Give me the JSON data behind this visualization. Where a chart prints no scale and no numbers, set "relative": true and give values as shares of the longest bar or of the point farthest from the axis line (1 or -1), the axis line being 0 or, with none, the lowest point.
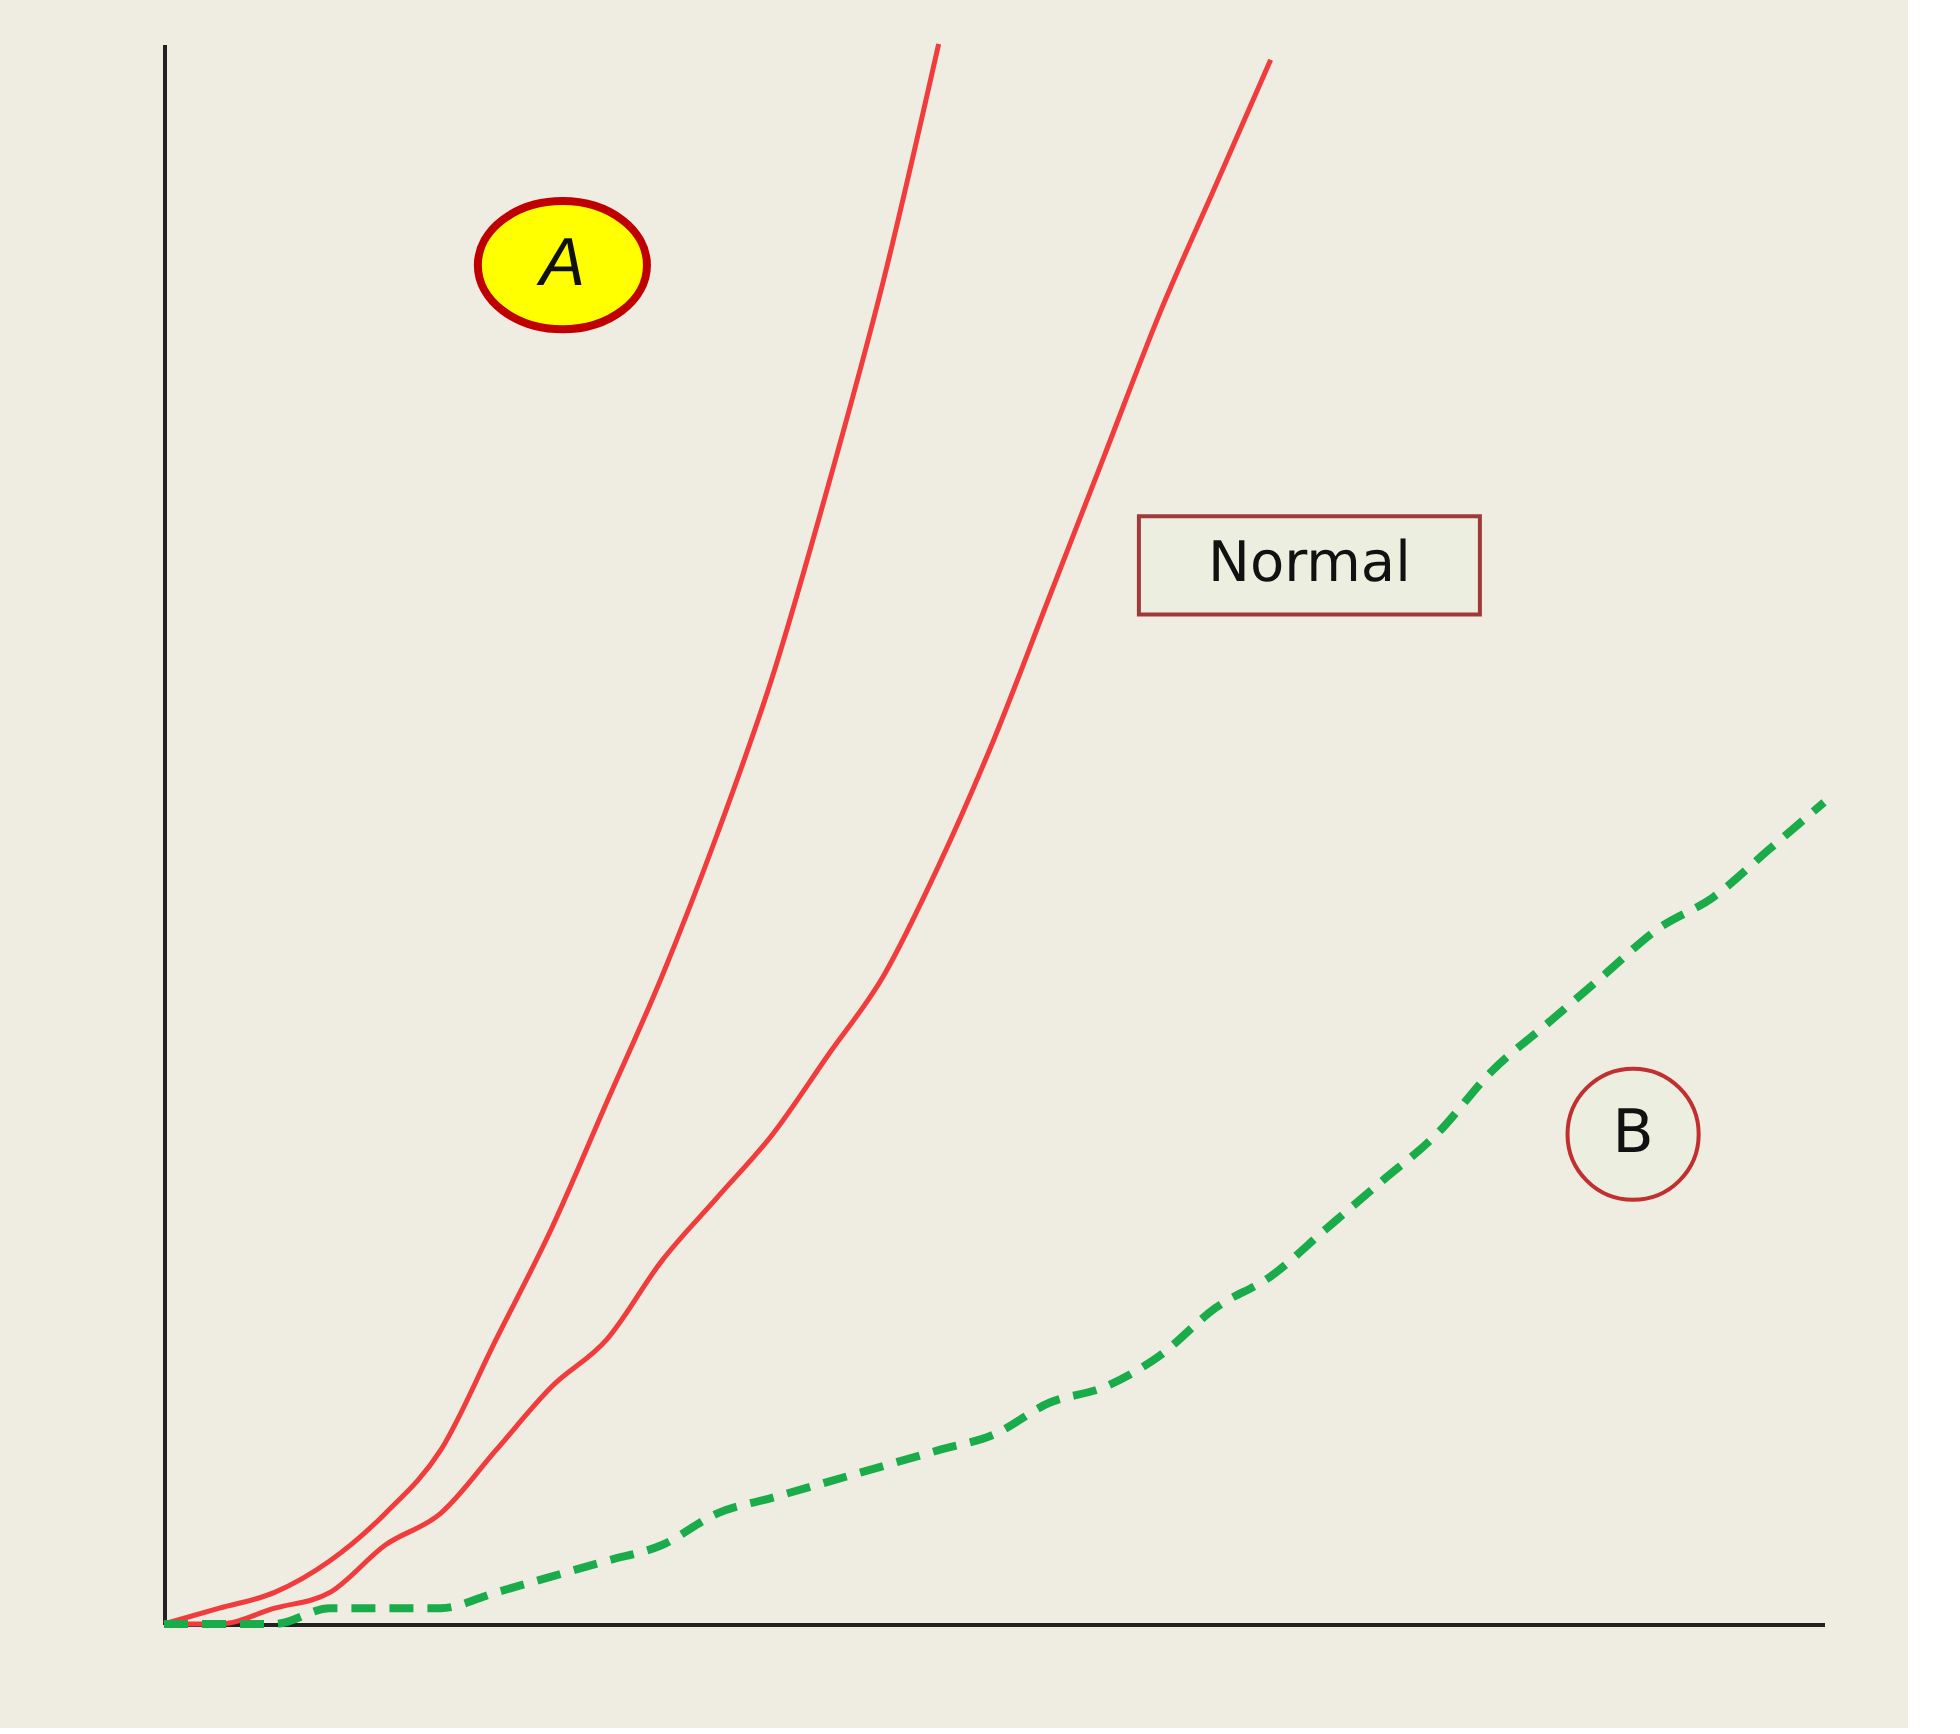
{
  "chart_data": {
    "type": "line",
    "relative": true,
    "grid": false,
    "tick_labels": false,
    "marker": "none",
    "categories": [
      null,
      null,
      null,
      null,
      null,
      null,
      null,
      null,
      null,
      null,
      null,
      null,
      null,
      null,
      null,
      null,
      null,
      null,
      null,
      null,
      null,
      null,
      null,
      null,
      null,
      null,
      null,
      null,
      null,
      null,
      null
    ],
    "series": [
      {
        "color": "#f03c3c",
        "line_style": "solid",
        "values": [
          0,
          0.01,
          0.02,
          0.04,
          0.07,
          0.11,
          0.18,
          0.25,
          0.33,
          0.41,
          0.5,
          0.6,
          0.72,
          0.85,
          1,
          null,
          null,
          null,
          null,
          null,
          null,
          null,
          null,
          null,
          null,
          null,
          null,
          null,
          null,
          null,
          null
        ]
      },
      {
        "color": "#f03c3c",
        "line_style": "solid",
        "values": [
          0,
          0,
          0.01,
          0.02,
          0.05,
          0.07,
          0.11,
          0.15,
          0.18,
          0.23,
          0.27,
          0.31,
          0.36,
          0.41,
          0.48,
          0.56,
          0.65,
          0.74,
          0.83,
          0.91,
          0.99,
          null,
          null,
          null,
          null,
          null,
          null,
          null,
          null,
          null,
          null
        ]
      },
      {
        "color": "#1aab4a",
        "line_style": "dashed",
        "values": [
          0,
          0,
          0,
          0.01,
          0.01,
          0.01,
          0.02,
          0.03,
          0.04,
          0.05,
          0.07,
          0.08,
          0.09,
          0.1,
          0.11,
          0.12,
          0.14,
          0.15,
          0.17,
          0.2,
          0.22,
          0.25,
          0.28,
          0.31,
          0.35,
          0.38,
          0.41,
          0.44,
          0.46,
          0.49,
          0.52
        ]
      }
    ],
    "annotations": [
      "A",
      "Normal",
      "B"
    ]
  }
}
